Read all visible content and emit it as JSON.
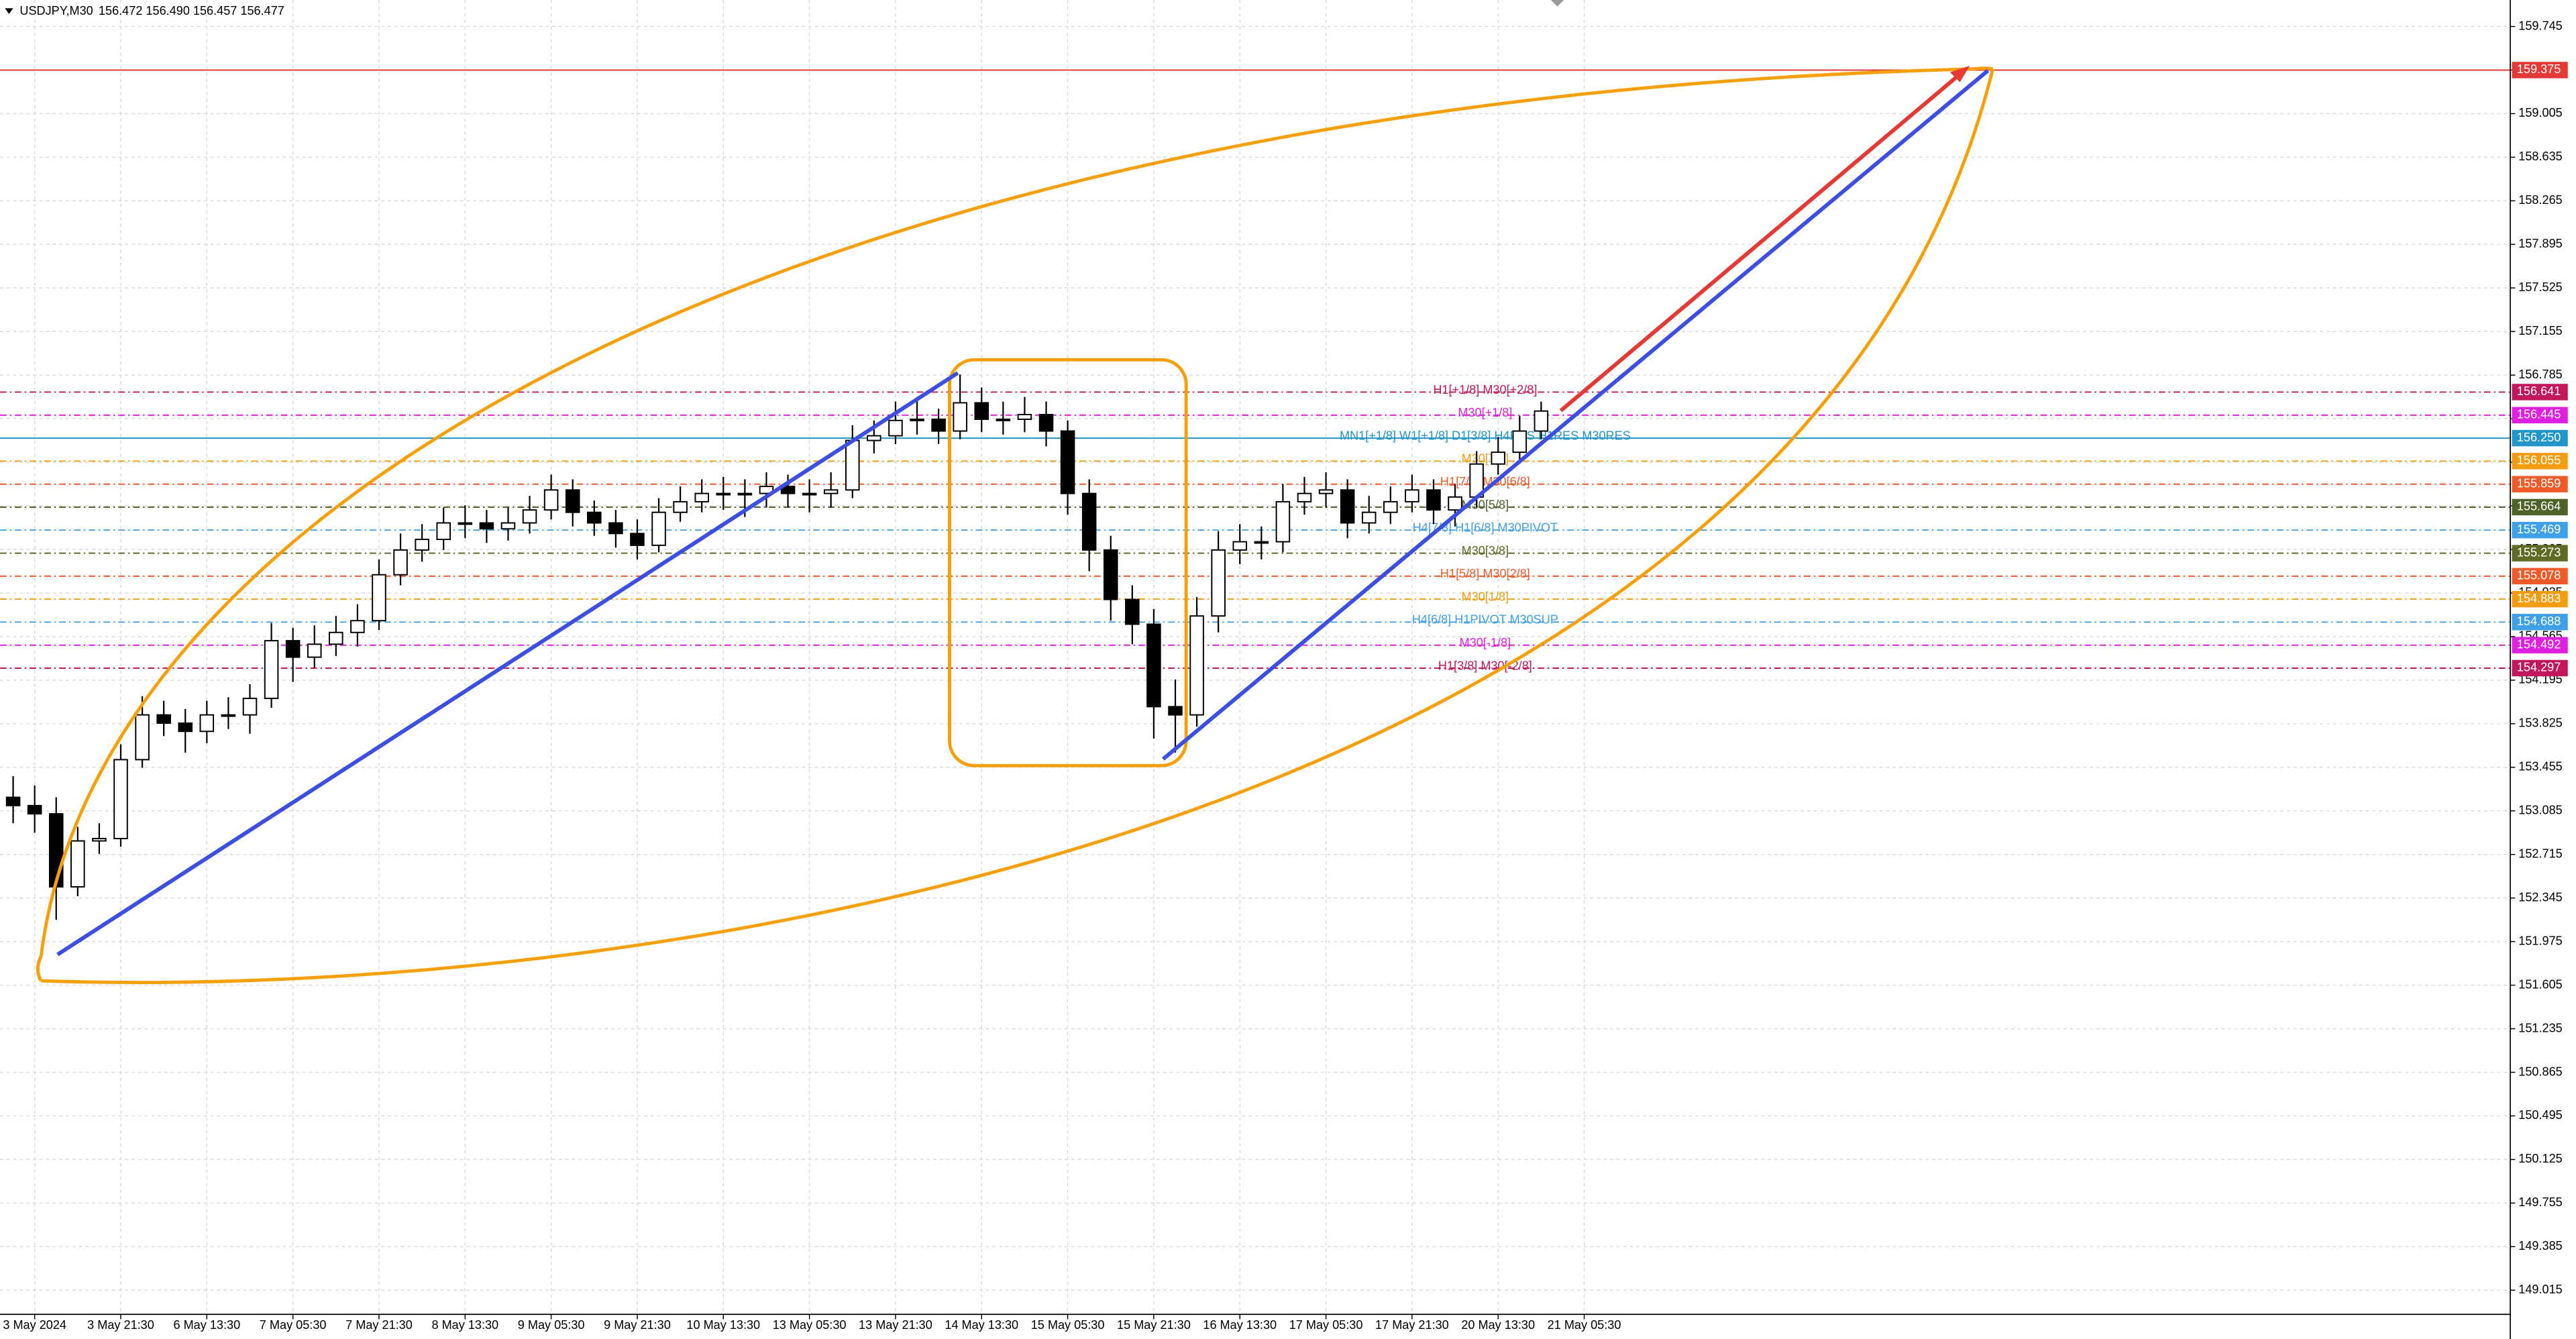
{
  "chart_data": {
    "type": "candlestick",
    "header": {
      "symbol": "USDJPY,M30",
      "quote": "156.472 156.490 156.457 156.477"
    },
    "categories": [
      null,
      "3 May 2024",
      null,
      null,
      null,
      "3 May 21:30",
      null,
      null,
      null,
      "6 May 13:30",
      null,
      null,
      null,
      "7 May 05:30",
      null,
      null,
      null,
      "7 May 21:30",
      null,
      null,
      null,
      "8 May 13:30",
      null,
      null,
      null,
      "9 May 05:30",
      null,
      null,
      null,
      "9 May 21:30",
      null,
      null,
      null,
      "10 May 13:30",
      null,
      null,
      null,
      "13 May 05:30",
      null,
      null,
      null,
      "13 May 21:30",
      null,
      null,
      null,
      "14 May 13:30",
      null,
      null,
      null,
      "15 May 05:30",
      null,
      null,
      null,
      "15 May 21:30",
      null,
      null,
      null,
      "16 May 13:30",
      null,
      null,
      null,
      "17 May 05:30",
      null,
      null,
      null,
      "17 May 21:30",
      null,
      null,
      null,
      "20 May 13:30",
      null,
      null,
      null,
      "21 May 05:30"
    ],
    "open": [
      153.2,
      153.13,
      153.06,
      152.44,
      152.83,
      152.85,
      153.52,
      153.9,
      153.83,
      153.76,
      153.9,
      153.9,
      154.04,
      154.53,
      154.39,
      154.5,
      154.6,
      154.7,
      155.09,
      155.3,
      155.39,
      155.53,
      155.53,
      155.48,
      155.53,
      155.64,
      155.81,
      155.62,
      155.53,
      155.44,
      155.34,
      155.62,
      155.71,
      155.78,
      155.78,
      155.78,
      155.84,
      155.78,
      155.78,
      155.81,
      156.23,
      156.27,
      156.4,
      156.41,
      156.31,
      156.55,
      156.41,
      156.41,
      156.45,
      156.31,
      155.78,
      155.3,
      154.88,
      154.67,
      153.97,
      153.9,
      154.74,
      155.3,
      155.37,
      155.37,
      155.71,
      155.78,
      155.81,
      155.53,
      155.62,
      155.71,
      155.81,
      155.64,
      155.75,
      156.03,
      156.13,
      156.31,
      null,
      null
    ],
    "high": [
      153.38,
      153.3,
      153.2,
      152.95,
      152.98,
      153.65,
      154.06,
      154.02,
      153.95,
      154.02,
      154.05,
      154.16,
      154.68,
      154.64,
      154.66,
      154.74,
      154.84,
      155.22,
      155.44,
      155.52,
      155.66,
      155.68,
      155.64,
      155.66,
      155.76,
      155.94,
      155.9,
      155.72,
      155.64,
      155.56,
      155.74,
      155.84,
      155.9,
      155.92,
      155.9,
      155.96,
      155.94,
      155.9,
      155.96,
      156.36,
      156.4,
      156.56,
      156.58,
      156.5,
      156.79,
      156.68,
      156.56,
      156.6,
      156.56,
      156.4,
      155.9,
      155.42,
      155.0,
      154.8,
      154.2,
      154.9,
      155.46,
      155.52,
      155.5,
      155.86,
      155.92,
      155.96,
      155.9,
      155.76,
      155.84,
      155.94,
      155.9,
      155.86,
      156.14,
      156.26,
      156.44,
      156.56,
      null,
      null
    ],
    "low": [
      152.98,
      152.9,
      152.16,
      152.36,
      152.72,
      152.78,
      153.45,
      153.72,
      153.58,
      153.66,
      153.78,
      153.74,
      153.96,
      154.18,
      154.3,
      154.4,
      154.48,
      154.62,
      155.0,
      155.2,
      155.3,
      155.4,
      155.36,
      155.38,
      155.44,
      155.56,
      155.5,
      155.42,
      155.32,
      155.22,
      155.28,
      155.54,
      155.62,
      155.64,
      155.58,
      155.66,
      155.66,
      155.62,
      155.66,
      155.74,
      156.12,
      156.2,
      156.28,
      156.2,
      156.24,
      156.3,
      156.28,
      156.3,
      156.18,
      155.6,
      155.12,
      154.7,
      154.5,
      153.7,
      153.58,
      153.8,
      154.6,
      155.18,
      155.22,
      155.28,
      155.6,
      155.66,
      155.4,
      155.44,
      155.52,
      155.62,
      155.52,
      155.5,
      155.66,
      155.94,
      156.04,
      156.24,
      null,
      null
    ],
    "close": [
      153.13,
      153.06,
      152.44,
      152.83,
      152.85,
      153.52,
      153.9,
      153.83,
      153.76,
      153.9,
      153.9,
      154.04,
      154.53,
      154.39,
      154.5,
      154.6,
      154.7,
      155.09,
      155.3,
      155.39,
      155.53,
      155.53,
      155.48,
      155.53,
      155.64,
      155.81,
      155.62,
      155.53,
      155.44,
      155.34,
      155.62,
      155.71,
      155.78,
      155.78,
      155.78,
      155.84,
      155.78,
      155.78,
      155.81,
      156.23,
      156.27,
      156.4,
      156.41,
      156.31,
      156.55,
      156.41,
      156.41,
      156.45,
      156.31,
      155.78,
      155.3,
      154.88,
      154.67,
      153.97,
      153.9,
      154.74,
      155.3,
      155.37,
      155.37,
      155.71,
      155.78,
      155.81,
      155.53,
      155.62,
      155.71,
      155.81,
      155.64,
      155.75,
      156.03,
      156.13,
      156.31,
      156.48,
      null,
      null
    ],
    "up_color": "#ffffff",
    "down_color": "#000000",
    "wick_color": "#000000",
    "ylim": [
      148.81,
      159.97
    ],
    "yticks": [
      149.015,
      149.385,
      149.755,
      150.125,
      150.495,
      150.865,
      151.235,
      151.605,
      151.975,
      152.345,
      152.715,
      153.085,
      153.455,
      153.825,
      154.195,
      154.565,
      154.935,
      155.305,
      155.675,
      156.045,
      156.415,
      156.785,
      157.155,
      157.525,
      157.895,
      158.265,
      158.635,
      159.005,
      159.375,
      159.745
    ],
    "grid": true,
    "levels": [
      {
        "value": 159.375,
        "tag": "159.375",
        "color": "#e53935",
        "dashed": false
      },
      {
        "value": 156.641,
        "tag": "156.641",
        "label": "H1[+1/8] M30[+2/8]",
        "color": "#c2185b",
        "dashed": true
      },
      {
        "value": 156.445,
        "tag": "156.445",
        "label": "M30[+1/8]",
        "color": "#e020e0",
        "dashed": true
      },
      {
        "value": 156.25,
        "tag": "156.250",
        "label": "MN1[+1/8] W1[+1/8] D1[3/8] H4RES H1RES M30RES",
        "color": "#2196c8",
        "dashed": false
      },
      {
        "value": 156.055,
        "tag": "156.055",
        "label": "M30[7/8]",
        "color": "#f39c12",
        "dashed": true
      },
      {
        "value": 155.859,
        "tag": "155.859",
        "label": "H1[7/8] M30[6/8]",
        "color": "#f05a28",
        "dashed": true
      },
      {
        "value": 155.664,
        "tag": "155.664",
        "label": "M30[5/8]",
        "color": "#4f6228",
        "dashed": true
      },
      {
        "value": 155.469,
        "tag": "155.469",
        "label": "H4[7/8] H1[6/8] M30PIVOT",
        "color": "#3ea0e6",
        "dashed": true
      },
      {
        "value": 155.273,
        "tag": "155.273",
        "label": "M30[3/8]",
        "color": "#5e6b22",
        "dashed": true
      },
      {
        "value": 155.078,
        "tag": "155.078",
        "label": "H1[5/8] M30[2/8]",
        "color": "#f05a28",
        "dashed": true
      },
      {
        "value": 154.883,
        "tag": "154.883",
        "label": "M30[1/8]",
        "color": "#f39c12",
        "dashed": true
      },
      {
        "value": 154.688,
        "tag": "154.688",
        "label": "H4[6/8] H1PIVOT M30SUP",
        "color": "#3ea0e6",
        "dashed": true
      },
      {
        "value": 154.492,
        "tag": "154.492",
        "label": "M30[-1/8]",
        "color": "#e020e0",
        "dashed": true
      },
      {
        "value": 154.297,
        "tag": "154.297",
        "label": "H1[3/8] M30[-2/8]",
        "color": "#c2185b",
        "dashed": true
      }
    ]
  }
}
